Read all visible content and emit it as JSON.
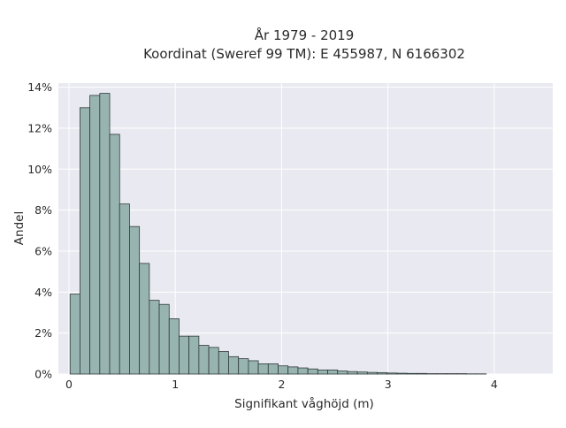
{
  "chart_data": {
    "type": "bar",
    "title": [
      "År 1979 - 2019",
      "Koordinat (Sweref 99 TM): E 455987, N 6166302"
    ],
    "xlabel": "Signifikant våghöjd (m)",
    "ylabel": "Andel",
    "xlim": [
      -0.1,
      4.55
    ],
    "ylim": [
      0,
      14.2
    ],
    "xticks": [
      0,
      1,
      2,
      3,
      4
    ],
    "xtick_labels": [
      "0",
      "1",
      "2",
      "3",
      "4"
    ],
    "yticks": [
      0,
      2,
      4,
      6,
      8,
      10,
      12,
      14
    ],
    "ytick_labels": [
      "0%",
      "2%",
      "4%",
      "6%",
      "8%",
      "10%",
      "12%",
      "14%"
    ],
    "bin_width": 0.0932,
    "bin_start": 0.01,
    "values": [
      3.9,
      13.0,
      13.6,
      13.7,
      11.7,
      8.3,
      7.2,
      5.4,
      3.6,
      3.4,
      2.7,
      1.85,
      1.85,
      1.4,
      1.3,
      1.1,
      0.85,
      0.75,
      0.65,
      0.5,
      0.5,
      0.4,
      0.35,
      0.3,
      0.25,
      0.2,
      0.2,
      0.15,
      0.12,
      0.1,
      0.08,
      0.07,
      0.05,
      0.04,
      0.03,
      0.03,
      0.02,
      0.02,
      0.02,
      0.02,
      0.01,
      0.01
    ],
    "grid": true,
    "legend": "none",
    "colors": {
      "bar_fill": "#98b4b1",
      "bar_edge": "#2f3a39",
      "plot_bg": "#e9e9f1",
      "grid": "#ffffff"
    }
  }
}
